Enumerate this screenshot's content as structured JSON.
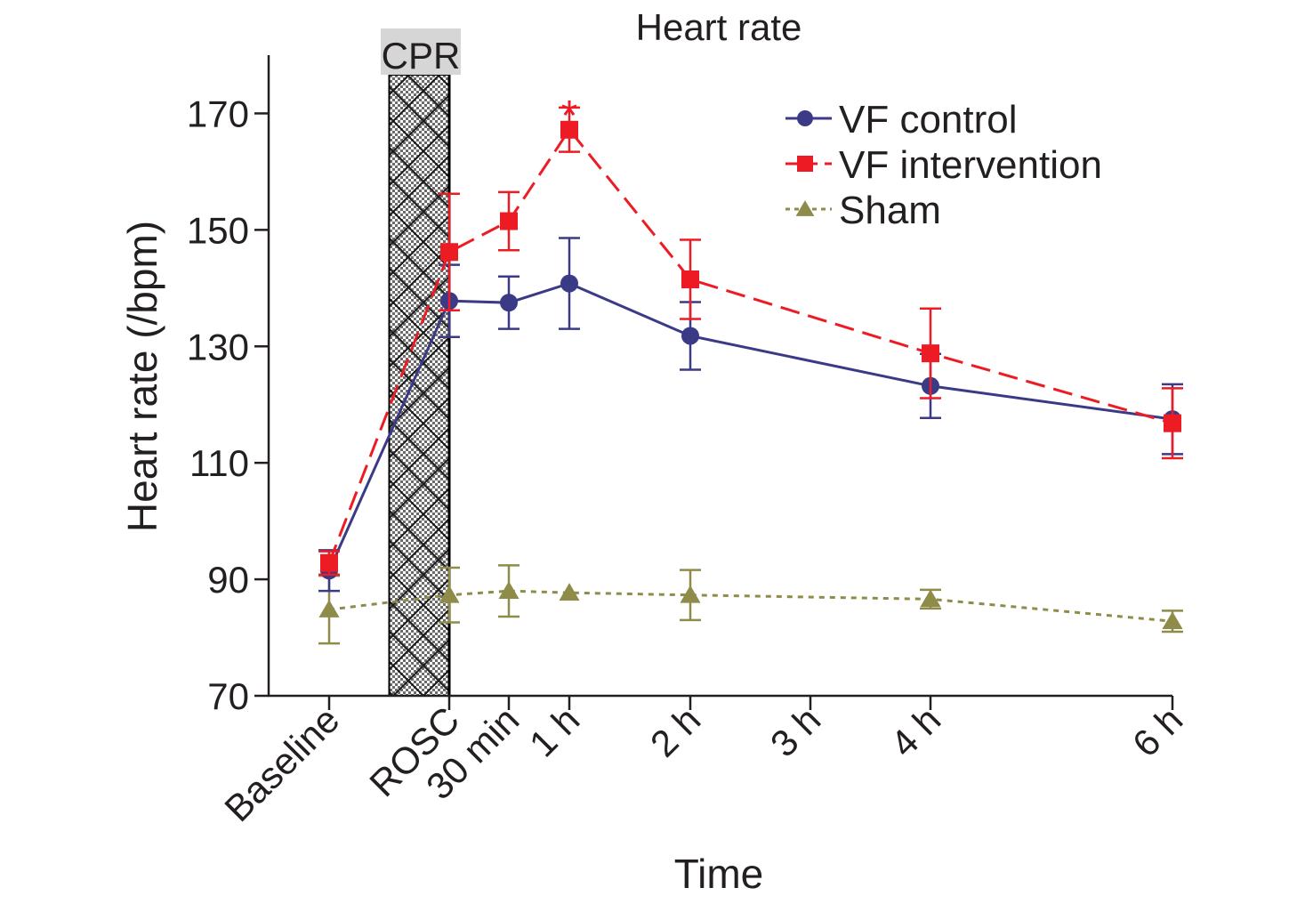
{
  "chart_data": {
    "type": "line",
    "title": "Heart rate",
    "xlabel": "Time",
    "ylabel": "Heart rate (/bpm)",
    "ylim": [
      70,
      180
    ],
    "yticks": [
      70,
      90,
      110,
      130,
      150,
      170
    ],
    "categories": [
      "Baseline",
      "ROSC",
      "30 min",
      "1 h",
      "2 h",
      "3 h",
      "4 h",
      "6 h"
    ],
    "x_hours": [
      -0.5,
      0,
      0.5,
      1,
      2,
      3,
      4,
      6
    ],
    "shaded_band": {
      "label": "CPR",
      "x_start": -0.25,
      "x_end": 0
    },
    "legend_position": "top-right",
    "grid": false,
    "series": [
      {
        "name": "VF control",
        "color": "#3b3a87",
        "marker": "circle",
        "line_style": "solid",
        "x": [
          -0.5,
          0,
          0.5,
          1,
          2,
          4,
          6
        ],
        "y": [
          91.5,
          137.8,
          137.5,
          140.8,
          131.8,
          123.2,
          117.5
        ],
        "err": [
          3.5,
          6.2,
          4.5,
          7.8,
          5.8,
          5.5,
          6.0
        ]
      },
      {
        "name": "VF intervention",
        "color": "#ed1c24",
        "marker": "square",
        "line_style": "dashed",
        "x": [
          -0.5,
          0,
          0.5,
          1,
          2,
          4,
          6
        ],
        "y": [
          92.8,
          146.2,
          151.5,
          167.2,
          141.5,
          128.8,
          116.8
        ],
        "err": [
          2.0,
          10.0,
          5.0,
          3.8,
          6.8,
          7.7,
          6.0
        ]
      },
      {
        "name": "Sham",
        "color": "#8f8c4a",
        "marker": "triangle",
        "line_style": "dotted",
        "x": [
          -0.5,
          0,
          0.5,
          1,
          2,
          4,
          6
        ],
        "y": [
          84.8,
          87.3,
          88.0,
          87.7,
          87.3,
          86.6,
          82.8
        ],
        "err": [
          5.8,
          4.7,
          4.4,
          0,
          4.3,
          1.6,
          1.8
        ]
      }
    ],
    "annotations": [
      {
        "text": "*",
        "x": 1,
        "y": 170.5,
        "color": "#ed1c24"
      }
    ]
  }
}
